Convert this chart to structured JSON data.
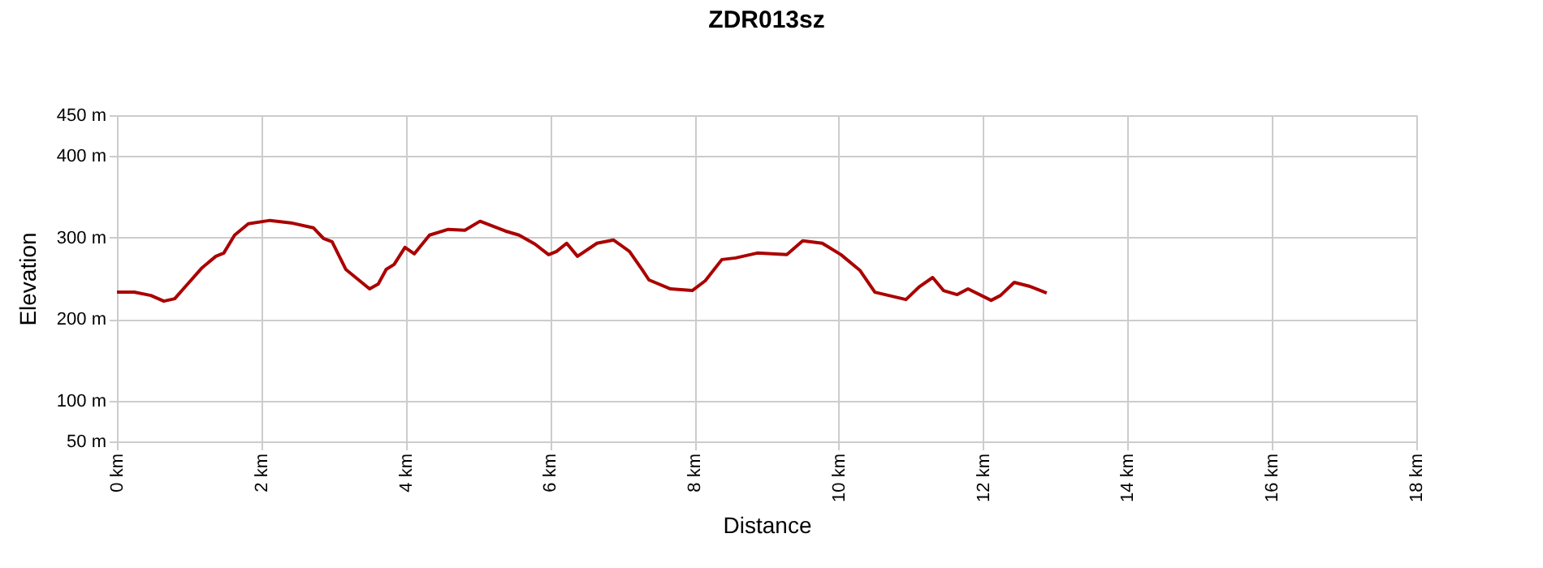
{
  "chart_data": {
    "type": "line",
    "title": "ZDR013sz",
    "xlabel": "Distance",
    "ylabel": "Elevation",
    "x": [
      0,
      0.24,
      0.47,
      0.65,
      0.8,
      0.95,
      1.18,
      1.37,
      1.48,
      1.63,
      1.82,
      2.12,
      2.41,
      2.72,
      2.86,
      2.98,
      3.17,
      3.5,
      3.62,
      3.73,
      3.84,
      3.99,
      4.12,
      4.33,
      4.59,
      4.82,
      5.03,
      5.38,
      5.57,
      5.79,
      5.98,
      6.09,
      6.23,
      6.38,
      6.65,
      6.88,
      7.1,
      7.28,
      7.37,
      7.67,
      7.97,
      8.15,
      8.38,
      8.57,
      8.87,
      9.28,
      9.5,
      9.77,
      10.03,
      10.29,
      10.5,
      10.93,
      11.12,
      11.3,
      11.45,
      11.64,
      11.79,
      12.11,
      12.24,
      12.43,
      12.65,
      12.88
    ],
    "series": [
      {
        "color": "#aa0000",
        "values": [
          233,
          233,
          229,
          222,
          225,
          240,
          263,
          277,
          281,
          303,
          317,
          321,
          318,
          312,
          299,
          295,
          261,
          237,
          243,
          261,
          267,
          288,
          280,
          303,
          310,
          309,
          320,
          308,
          303,
          292,
          279,
          283,
          293,
          277,
          293,
          297,
          283,
          260,
          248,
          237,
          235,
          247,
          273,
          275,
          281,
          279,
          296,
          293,
          279,
          260,
          233,
          224,
          240,
          251,
          235,
          230,
          237,
          223,
          229,
          245,
          240,
          232
        ]
      }
    ],
    "xlim": [
      0,
      18
    ],
    "xticks": [
      {
        "value": 0,
        "label": "0 km"
      },
      {
        "value": 2,
        "label": "2 km"
      },
      {
        "value": 4,
        "label": "4 km"
      },
      {
        "value": 6,
        "label": "6 km"
      },
      {
        "value": 8,
        "label": "8 km"
      },
      {
        "value": 10,
        "label": "10 km"
      },
      {
        "value": 12,
        "label": "12 km"
      },
      {
        "value": 14,
        "label": "14 km"
      },
      {
        "value": 16,
        "label": "16 km"
      },
      {
        "value": 18,
        "label": "18 km"
      }
    ],
    "ylim": [
      50,
      450
    ],
    "yticks": [
      {
        "value": 50,
        "label": "50 m"
      },
      {
        "value": 100,
        "label": "100 m"
      },
      {
        "value": 200,
        "label": "200 m"
      },
      {
        "value": 300,
        "label": "300 m"
      },
      {
        "value": 400,
        "label": "400 m"
      },
      {
        "value": 450,
        "label": "450 m"
      }
    ],
    "grid": true,
    "marker": "none",
    "line_style": "solid"
  }
}
